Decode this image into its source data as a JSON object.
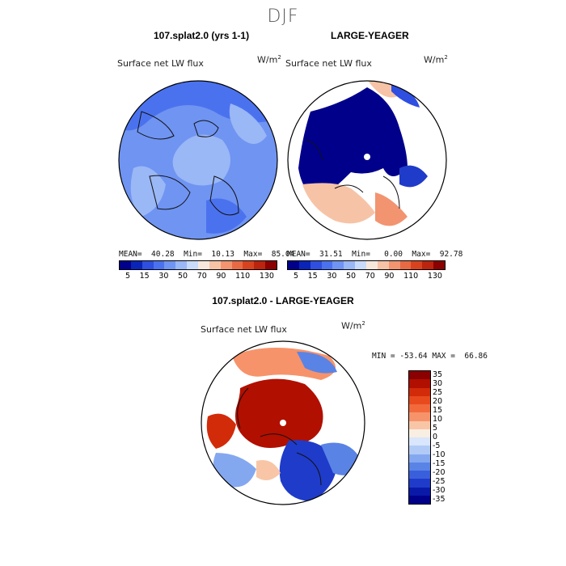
{
  "season_title": "DJF",
  "panels": [
    {
      "title": "107.splat2.0 (yrs 1-1)",
      "field": "Surface net LW flux",
      "units": "W/m",
      "units_sup": "2",
      "stats": "MEAN=  40.28  Min=  10.13  Max=  85.04"
    },
    {
      "title": "LARGE-YEAGER",
      "field": "Surface net LW flux",
      "units": "W/m",
      "units_sup": "2",
      "stats": "MEAN=  31.51  Min=   0.00  Max=  92.78"
    }
  ],
  "diff_panel": {
    "title": "107.splat2.0 - LARGE-YEAGER",
    "field": "Surface net LW flux",
    "units": "W/m",
    "units_sup": "2",
    "minmax": "MIN = -53.64 MAX =  66.86"
  },
  "colorbar_top": {
    "labels": [
      "5",
      "15",
      "30",
      "50",
      "70",
      "90",
      "110",
      "130"
    ],
    "colors": [
      "#00008b",
      "#0a24b8",
      "#2e4fe0",
      "#4b72ee",
      "#6f94f2",
      "#9ab7f6",
      "#c9dbfb",
      "#f8e8dc",
      "#f7c3a6",
      "#f29470",
      "#e86a44",
      "#d8431f",
      "#bb240e",
      "#8b0000"
    ]
  },
  "colorbar_diff": {
    "labels": [
      "35",
      "30",
      "25",
      "20",
      "15",
      "10",
      "5",
      "0",
      "-5",
      "-10",
      "-15",
      "-20",
      "-25",
      "-30",
      "-35"
    ],
    "colors": [
      "#8b0000",
      "#b10f00",
      "#d12b0a",
      "#e84a1e",
      "#f26a3c",
      "#f7936a",
      "#f8c6a6",
      "#f8eee2",
      "#d9e6fb",
      "#b2cbf6",
      "#84a8ef",
      "#5a83e6",
      "#3a5fdc",
      "#1f3bc9",
      "#0a1aa8",
      "#00008b"
    ]
  },
  "map_colors": {
    "model_ocean": "#6f94f2",
    "model_light": "#9ab7f6",
    "model_dark": "#4b72ee",
    "obs_core": "#00008b",
    "obs_edge": "#1f3bc9",
    "obs_warm": "#f7c3a6",
    "diff_warm": "#b10f00",
    "diff_cool": "#1f3bc9"
  }
}
